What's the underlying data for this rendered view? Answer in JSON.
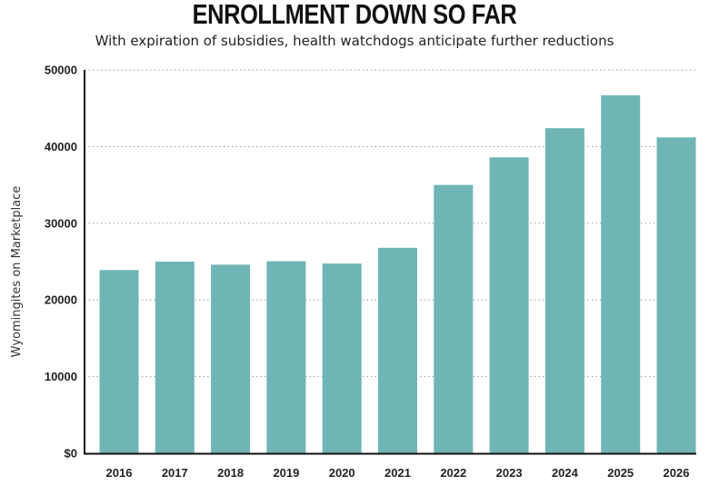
{
  "chart_data": {
    "type": "bar",
    "title": "ENROLLMENT DOWN SO FAR",
    "subtitle": "With expiration of subsidies, health watchdogs anticipate further reductions",
    "xlabel": "",
    "ylabel": "Wyomingites on Marketplace",
    "categories": [
      "2016",
      "2017",
      "2018",
      "2019",
      "2020",
      "2021",
      "2022",
      "2023",
      "2024",
      "2025",
      "2026"
    ],
    "values": [
      23900,
      25000,
      24600,
      25050,
      24750,
      26800,
      35000,
      38600,
      42400,
      46700,
      41200
    ],
    "ylim": [
      0,
      50000
    ],
    "yticks": [
      0,
      10000,
      20000,
      30000,
      40000,
      50000
    ],
    "ytick_labels": [
      "$0",
      "10000",
      "20000",
      "30000",
      "40000",
      "50000"
    ],
    "grid": true,
    "bar_color": "#6fb5b5"
  }
}
